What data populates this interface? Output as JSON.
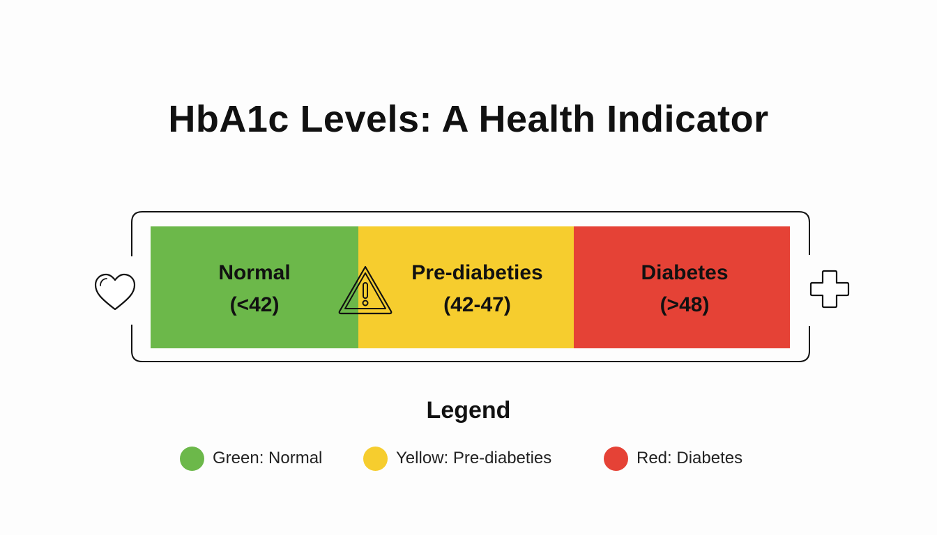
{
  "title": "HbA1c Levels: A Health Indicator",
  "colors": {
    "green": "#6cb84a",
    "yellow": "#f6cd2e",
    "red": "#e54236"
  },
  "segments": [
    {
      "name": "Normal",
      "range": "(<42)"
    },
    {
      "name": "Pre-diabeties",
      "range": "(42-47)"
    },
    {
      "name": "Diabetes",
      "range": "(>48)"
    }
  ],
  "icons": {
    "left": "heart-icon",
    "middle": "warning-icon",
    "right": "medical-cross-icon"
  },
  "legend": {
    "title": "Legend",
    "items": [
      {
        "label": "Green: Normal"
      },
      {
        "label": "Yellow: Pre-diabeties"
      },
      {
        "label": "Red: Diabetes"
      }
    ]
  }
}
